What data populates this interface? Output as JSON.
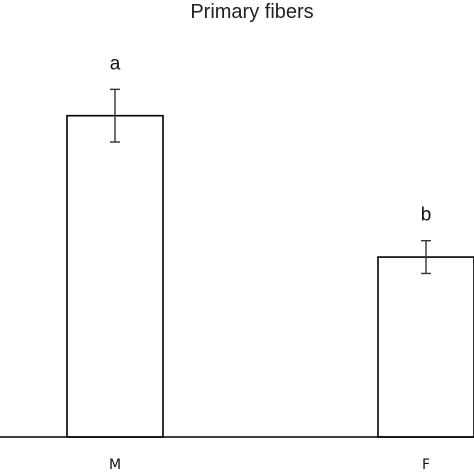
{
  "chart_data": {
    "type": "bar",
    "title": "Primary fibers",
    "xlabel": "",
    "ylabel": "",
    "categories": [
      "M",
      "F"
    ],
    "values": [
      100,
      56
    ],
    "error": [
      8.2,
      5.1
    ],
    "significance_labels": [
      "a",
      "b"
    ],
    "ylim": [
      0,
      122
    ],
    "grid": false,
    "legend": "none",
    "colors": {
      "bar_fill": "#ffffff",
      "bar_stroke": "#000000",
      "error_bar": "#333333",
      "axis": "#000000"
    }
  }
}
